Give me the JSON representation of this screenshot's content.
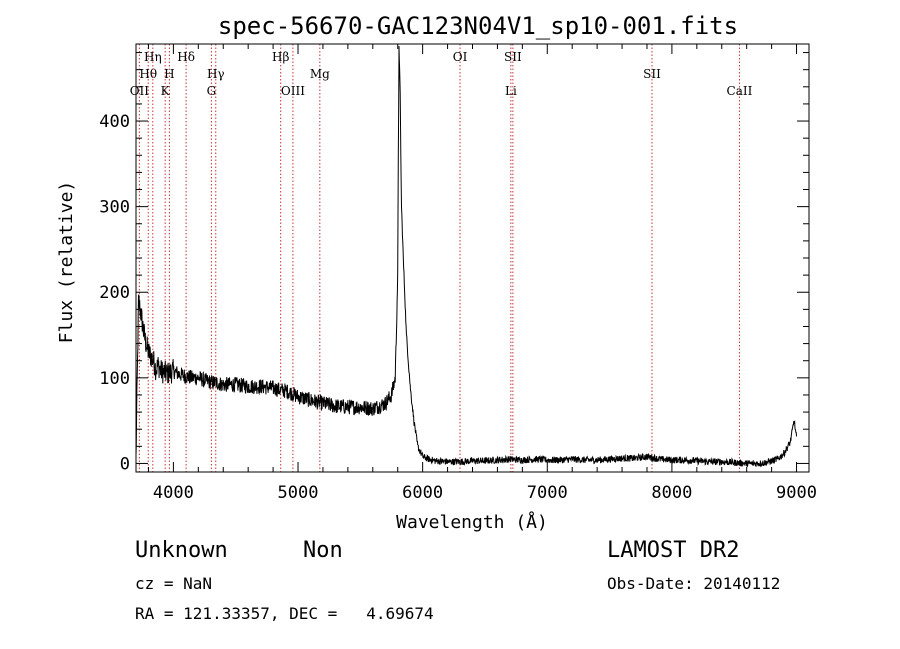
{
  "chart_data": {
    "type": "line",
    "title": "spec-56670-GAC123N04V1_sp10-001.fits",
    "xlabel": "Wavelength (Å)",
    "ylabel": "Flux (relative)",
    "xlim": [
      3700,
      9100
    ],
    "ylim": [
      -10,
      490
    ],
    "xticks": [
      4000,
      5000,
      6000,
      7000,
      8000,
      9000
    ],
    "yticks": [
      0,
      100,
      200,
      300,
      400
    ],
    "grid": false,
    "series": [
      {
        "x": [
          3700,
          3720,
          3740,
          3760,
          3780,
          3800,
          3820,
          3840,
          3860,
          3880,
          3900,
          3950,
          4000,
          4050,
          4100,
          4150,
          4200,
          4250,
          4300,
          4350,
          4400,
          4500,
          4600,
          4700,
          4800,
          4850,
          4900,
          4950,
          5000,
          5100,
          5200,
          5300,
          5400,
          5500,
          5600,
          5700,
          5750,
          5780,
          5800,
          5810,
          5820,
          5830,
          5850,
          5870,
          5900,
          5930,
          5960,
          6000,
          6050,
          6100,
          6200,
          6300,
          6400,
          6500,
          6600,
          6700,
          6800,
          6900,
          7000,
          7100,
          7200,
          7300,
          7400,
          7500,
          7600,
          7700,
          7800,
          7900,
          8000,
          8100,
          8200,
          8300,
          8400,
          8500,
          8600,
          8700,
          8750,
          8800,
          8850,
          8900,
          8950,
          8980,
          9000
        ],
        "y": [
          5,
          190,
          175,
          155,
          140,
          130,
          125,
          120,
          110,
          115,
          108,
          105,
          108,
          104,
          102,
          100,
          100,
          97,
          95,
          94,
          92,
          92,
          90,
          90,
          88,
          86,
          85,
          82,
          78,
          74,
          70,
          67,
          66,
          66,
          64,
          70,
          80,
          100,
          220,
          490,
          430,
          300,
          220,
          150,
          90,
          50,
          20,
          8,
          5,
          3,
          2,
          2,
          3,
          3,
          4,
          5,
          4,
          5,
          4,
          4,
          5,
          4,
          4,
          5,
          6,
          6,
          8,
          5,
          4,
          4,
          3,
          2,
          2,
          1,
          0,
          0,
          1,
          3,
          5,
          12,
          25,
          50,
          30
        ]
      }
    ],
    "lines": [
      {
        "label": "OII",
        "x": 3727,
        "row": 3,
        "font": "serif"
      },
      {
        "label": "Hθ",
        "x": 3798,
        "row": 2,
        "font": "serif"
      },
      {
        "label": "Hη",
        "x": 3835,
        "row": 1,
        "font": "serif"
      },
      {
        "label": "K",
        "x": 3934,
        "row": 3,
        "font": "serif"
      },
      {
        "label": "H",
        "x": 3968,
        "row": 2,
        "font": "serif"
      },
      {
        "label": "Hδ",
        "x": 4102,
        "row": 1,
        "font": "serif"
      },
      {
        "label": "G",
        "x": 4305,
        "row": 3,
        "font": "serif"
      },
      {
        "label": "Hγ",
        "x": 4340,
        "row": 2,
        "font": "serif"
      },
      {
        "label": "Hβ",
        "x": 4861,
        "row": 1,
        "font": "serif"
      },
      {
        "label": "OIII",
        "x": 4959,
        "row": 3,
        "font": "serif"
      },
      {
        "label": "Mg",
        "x": 5175,
        "row": 2,
        "font": "serif"
      },
      {
        "label": "OI",
        "x": 6300,
        "row": 1,
        "font": "serif"
      },
      {
        "label": "Li",
        "x": 6708,
        "row": 3,
        "font": "serif"
      },
      {
        "label": "SII",
        "x": 6724,
        "row": 1,
        "font": "serif"
      },
      {
        "label": "SII",
        "x": 7840,
        "row": 2,
        "font": "serif"
      },
      {
        "label": "CaII",
        "x": 8542,
        "row": 3,
        "font": "serif"
      }
    ]
  },
  "info": {
    "classification": "Unknown",
    "subclass": "Non",
    "survey": "LAMOST DR2",
    "cz": "cz = NaN",
    "obs_date": "Obs-Date: 20140112",
    "coords": "RA = 121.33357, DEC =   4.69674"
  },
  "colors": {
    "spectrum": "#000000",
    "line_markers": "#cc3333"
  }
}
